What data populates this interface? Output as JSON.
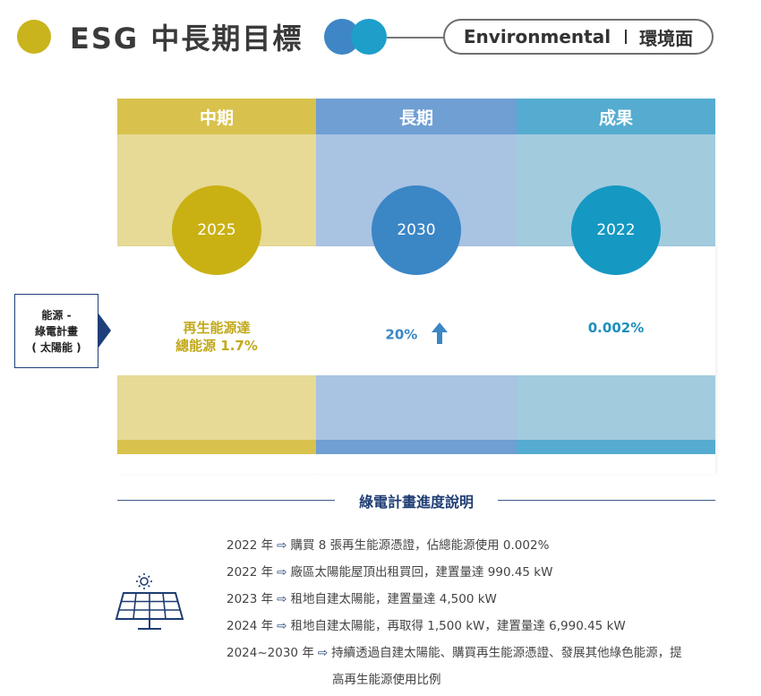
{
  "header": {
    "title": "ESG 中長期目標",
    "pill_en": "Environmental",
    "pill_zh": "環境面"
  },
  "columns": [
    {
      "heading": "中期",
      "year": "2025",
      "value_lines": [
        "再生能源達",
        "總能源 1.7%"
      ]
    },
    {
      "heading": "長期",
      "year": "2030",
      "value_lines": [
        "20%"
      ]
    },
    {
      "heading": "成果",
      "year": "2022",
      "value_lines": [
        "0.002%"
      ]
    }
  ],
  "side_label": {
    "lines": [
      "能源 -",
      "綠電計畫",
      "( 太陽能 )"
    ]
  },
  "section": {
    "title": "綠電計畫進度說明"
  },
  "progress": [
    {
      "year": "2022 年",
      "text": "購買 8 張再生能源憑證，佔總能源使用 0.002%"
    },
    {
      "year": "2022 年",
      "text": "廠區太陽能屋頂出租買回，建置量達 990.45 kW"
    },
    {
      "year": "2023 年",
      "text": "租地自建太陽能，建置量達 4,500 kW"
    },
    {
      "year": "2024 年",
      "text": "租地自建太陽能，再取得 1,500 kW，建置量達 6,990.45 kW"
    },
    {
      "year": "2024~2030 年",
      "text": "持續透過自建太陽能、購買再生能源憑證、發展其他綠色能源，提",
      "continuation": "高再生能源使用比例"
    }
  ],
  "icons": {
    "arrow": "right-arrow-icon",
    "trend": "up-arrow-icon",
    "solar": "solar-panel-icon"
  },
  "colors": {
    "mid": "#c9b114",
    "long": "#3b86c5",
    "result": "#1598c2",
    "navy": "#1f3d74"
  }
}
